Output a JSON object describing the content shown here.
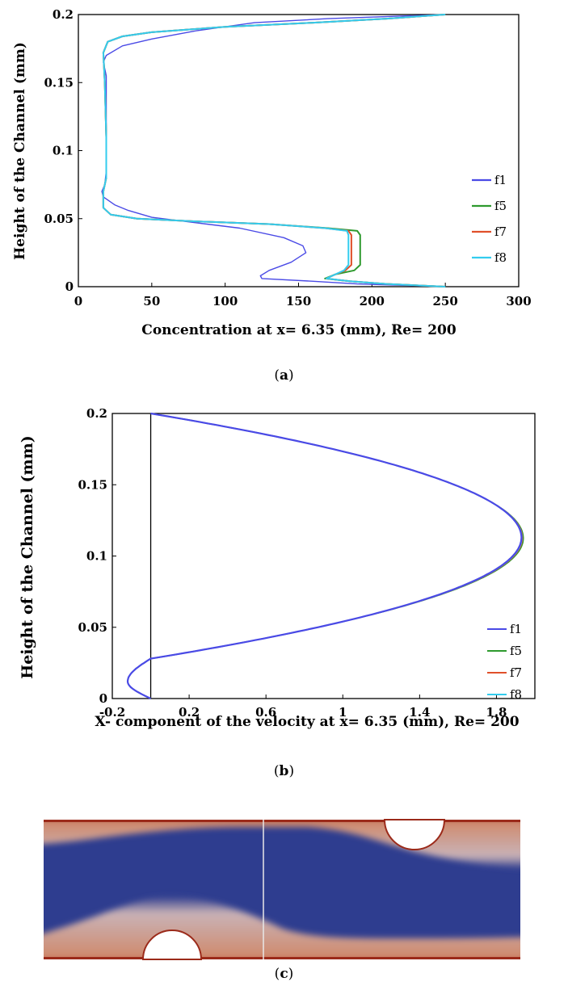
{
  "captions": {
    "a_open": "(",
    "a_letter": "a",
    "a_close": ")",
    "b_letter": "b",
    "c_letter": "c"
  },
  "chart_data": [
    {
      "type": "line",
      "xlabel": "Concentration at x= 6.35 (mm), Re= 200",
      "ylabel": "Height of the Channel (mm)",
      "xlim": [
        0,
        300
      ],
      "ylim": [
        0,
        0.2
      ],
      "xticks": [
        "0",
        "50",
        "100",
        "150",
        "200",
        "250",
        "300"
      ],
      "yticks": [
        "0",
        "0.05",
        "0.1",
        "0.15",
        "0.2"
      ],
      "grid": false,
      "legend_position": "right",
      "series": [
        {
          "name": "f1",
          "color": "#4a4ae6",
          "points": [
            [
              250,
              0.0
            ],
            [
              190,
              0.002
            ],
            [
              160,
              0.004
            ],
            [
              125,
              0.006
            ],
            [
              124,
              0.008
            ],
            [
              130,
              0.012
            ],
            [
              145,
              0.018
            ],
            [
              155,
              0.025
            ],
            [
              153,
              0.03
            ],
            [
              140,
              0.036
            ],
            [
              110,
              0.043
            ],
            [
              80,
              0.047
            ],
            [
              50,
              0.051
            ],
            [
              34,
              0.056
            ],
            [
              25,
              0.06
            ],
            [
              17,
              0.066
            ],
            [
              16,
              0.07
            ],
            [
              18,
              0.075
            ],
            [
              19,
              0.085
            ],
            [
              19,
              0.12
            ],
            [
              19,
              0.155
            ],
            [
              17,
              0.165
            ],
            [
              19,
              0.17
            ],
            [
              30,
              0.177
            ],
            [
              50,
              0.182
            ],
            [
              80,
              0.188
            ],
            [
              120,
              0.194
            ],
            [
              170,
              0.197
            ],
            [
              250,
              0.2
            ]
          ]
        },
        {
          "name": "f5",
          "color": "#2e9a2e",
          "points": [
            [
              250,
              0.0
            ],
            [
              210,
              0.002
            ],
            [
              185,
              0.004
            ],
            [
              168,
              0.006
            ],
            [
              175,
              0.009
            ],
            [
              188,
              0.012
            ],
            [
              192,
              0.016
            ],
            [
              192,
              0.038
            ],
            [
              190,
              0.041
            ],
            [
              170,
              0.043
            ],
            [
              130,
              0.046
            ],
            [
              80,
              0.048
            ],
            [
              40,
              0.05
            ],
            [
              22,
              0.053
            ],
            [
              17,
              0.058
            ],
            [
              17,
              0.07
            ],
            [
              19,
              0.08
            ],
            [
              19,
              0.11
            ],
            [
              18,
              0.15
            ],
            [
              17,
              0.172
            ],
            [
              20,
              0.18
            ],
            [
              30,
              0.184
            ],
            [
              50,
              0.187
            ],
            [
              100,
              0.191
            ],
            [
              160,
              0.194
            ],
            [
              210,
              0.197
            ],
            [
              250,
              0.2
            ]
          ]
        },
        {
          "name": "f7",
          "color": "#e0502a",
          "points": [
            [
              250,
              0.0
            ],
            [
              210,
              0.002
            ],
            [
              185,
              0.004
            ],
            [
              169,
              0.006
            ],
            [
              175,
              0.009
            ],
            [
              182,
              0.012
            ],
            [
              186,
              0.016
            ],
            [
              186,
              0.038
            ],
            [
              184,
              0.041
            ],
            [
              168,
              0.043
            ],
            [
              130,
              0.046
            ],
            [
              80,
              0.048
            ],
            [
              40,
              0.05
            ],
            [
              22,
              0.053
            ],
            [
              17,
              0.058
            ],
            [
              17,
              0.07
            ],
            [
              19,
              0.08
            ],
            [
              19,
              0.11
            ],
            [
              18,
              0.15
            ],
            [
              17,
              0.172
            ],
            [
              20,
              0.18
            ],
            [
              30,
              0.184
            ],
            [
              50,
              0.187
            ],
            [
              100,
              0.191
            ],
            [
              160,
              0.194
            ],
            [
              210,
              0.197
            ],
            [
              250,
              0.2
            ]
          ]
        },
        {
          "name": "f8",
          "color": "#33ccee",
          "points": [
            [
              250,
              0.0
            ],
            [
              210,
              0.002
            ],
            [
              185,
              0.004
            ],
            [
              169,
              0.006
            ],
            [
              175,
              0.009
            ],
            [
              181,
              0.012
            ],
            [
              184,
              0.016
            ],
            [
              184,
              0.038
            ],
            [
              183,
              0.041
            ],
            [
              168,
              0.043
            ],
            [
              130,
              0.046
            ],
            [
              80,
              0.048
            ],
            [
              40,
              0.05
            ],
            [
              22,
              0.053
            ],
            [
              17,
              0.058
            ],
            [
              17,
              0.07
            ],
            [
              19,
              0.08
            ],
            [
              19,
              0.11
            ],
            [
              18,
              0.15
            ],
            [
              17,
              0.172
            ],
            [
              20,
              0.18
            ],
            [
              30,
              0.184
            ],
            [
              50,
              0.187
            ],
            [
              100,
              0.191
            ],
            [
              160,
              0.194
            ],
            [
              210,
              0.197
            ],
            [
              250,
              0.2
            ]
          ]
        }
      ]
    },
    {
      "type": "line",
      "xlabel": "X- component of the velocity at x= 6.35 (mm), Re= 200",
      "ylabel": "Height of the Channel (mm)",
      "xlim": [
        -0.2,
        2.0
      ],
      "ylim": [
        0,
        0.2
      ],
      "xticks": [
        "-0.2",
        "0.2",
        "0.6",
        "1",
        "1.4",
        "1.8"
      ],
      "xtick_values": [
        -0.2,
        0.2,
        0.6,
        1.0,
        1.4,
        1.8
      ],
      "yticks": [
        "0",
        "0.05",
        "0.1",
        "0.15",
        "0.2"
      ],
      "grid": false,
      "legend_position": "right",
      "series": [
        {
          "name": "f1",
          "color": "#4a4ae6"
        },
        {
          "name": "f5",
          "color": "#2e9a2e"
        },
        {
          "name": "f7",
          "color": "#e0502a"
        },
        {
          "name": "f8",
          "color": "#33ccee"
        }
      ],
      "profile": {
        "umax": 1.93,
        "ypeak": 0.113,
        "umin": -0.12,
        "ymin": 0.012
      }
    },
    {
      "type": "heatmap",
      "colors": {
        "low": "#2e3d8f",
        "high": "#cf8a6d",
        "wall": "#9b2a1a"
      }
    }
  ]
}
